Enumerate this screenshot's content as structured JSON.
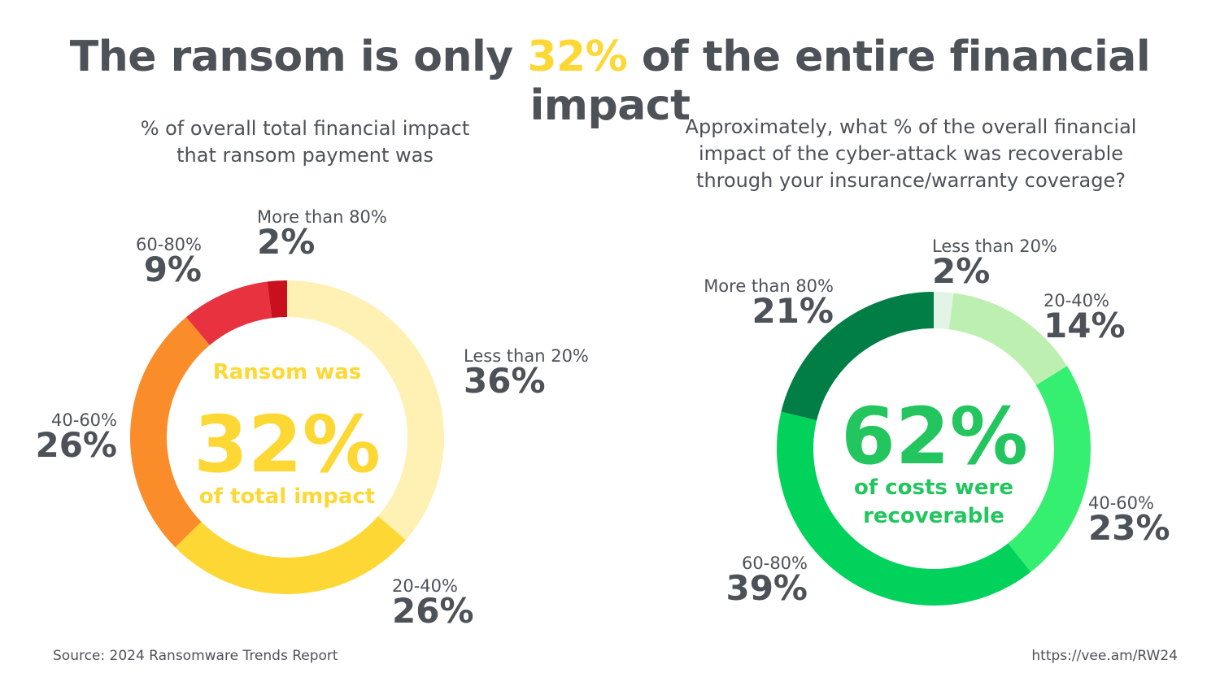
{
  "title": {
    "prefix": "The ransom is only ",
    "highlight": "32%",
    "suffix": " of the entire financial impact"
  },
  "footer": {
    "source": "Source: 2024 Ransomware Trends Report",
    "url": "https://vee.am/RW24"
  },
  "chart_data": [
    {
      "type": "pie",
      "donut": true,
      "title_lines": [
        "% of overall total financial impact",
        "that ransom payment was"
      ],
      "center": {
        "line1": "Ransom was",
        "value": "32%",
        "line2": "of total impact"
      },
      "slices": [
        {
          "label": "Less than 20%",
          "value": 36,
          "color": "#fff0b3"
        },
        {
          "label": "20-40%",
          "value": 26,
          "color": "#fdd835"
        },
        {
          "label": "40-60%",
          "value": 26,
          "color": "#fb8c2a"
        },
        {
          "label": "60-80%",
          "value": 9,
          "color": "#e8323f"
        },
        {
          "label": "More than 80%",
          "value": 2,
          "color": "#c8101e"
        }
      ]
    },
    {
      "type": "pie",
      "donut": true,
      "title_lines": [
        "Approximately, what % of the overall financial",
        "impact of the cyber-attack was recoverable",
        "through your insurance/warranty coverage?"
      ],
      "center": {
        "value": "62%",
        "line1": "of costs were",
        "line2": "recoverable"
      },
      "slices": [
        {
          "label": "Less than 20%",
          "value": 2,
          "color": "#e3f3e6"
        },
        {
          "label": "20-40%",
          "value": 14,
          "color": "#bdf0b0"
        },
        {
          "label": "40-60%",
          "value": 23,
          "color": "#35ef70"
        },
        {
          "label": "60-80%",
          "value": 39,
          "color": "#00d25b"
        },
        {
          "label": "More than 80%",
          "value": 21,
          "color": "#007e45"
        }
      ]
    }
  ]
}
